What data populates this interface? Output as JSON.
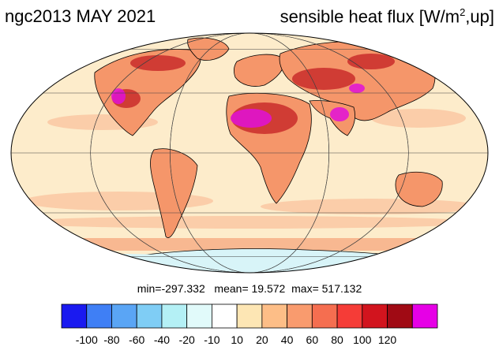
{
  "title": {
    "left": "ngc2013 MAY 2021",
    "right_prefix": "sensible heat flux [W/m",
    "right_superscript": "2",
    "right_suffix": ",up]"
  },
  "stats": {
    "min_label": "min=",
    "min": "-297.332",
    "mean_label": "mean=",
    "mean": "19.572",
    "max_label": "max=",
    "max": "517.132"
  },
  "colorbar": {
    "colors": [
      "#1a1af0",
      "#3f7ff5",
      "#5aa5f5",
      "#7fcdf5",
      "#b4f0f5",
      "#e1fafa",
      "#ffffff",
      "#fde6b4",
      "#fdbe87",
      "#f99b6e",
      "#f56e50",
      "#f53c37",
      "#d2141e",
      "#a00a14",
      "#e600e6"
    ],
    "tick_labels": [
      "-100",
      "-80",
      "-60",
      "-40",
      "-20",
      "-10",
      "10",
      "20",
      "40",
      "60",
      "80",
      "100",
      "120"
    ]
  },
  "map": {
    "projection": "Mollweide",
    "ocean_color": "#fdeccb",
    "land_color": "#f5966a",
    "hot_color": "#c0161e",
    "extreme_color": "#e010d8",
    "cool_color": "#d8f4f8",
    "grid_color": "#404040",
    "coast_color": "#000000"
  }
}
